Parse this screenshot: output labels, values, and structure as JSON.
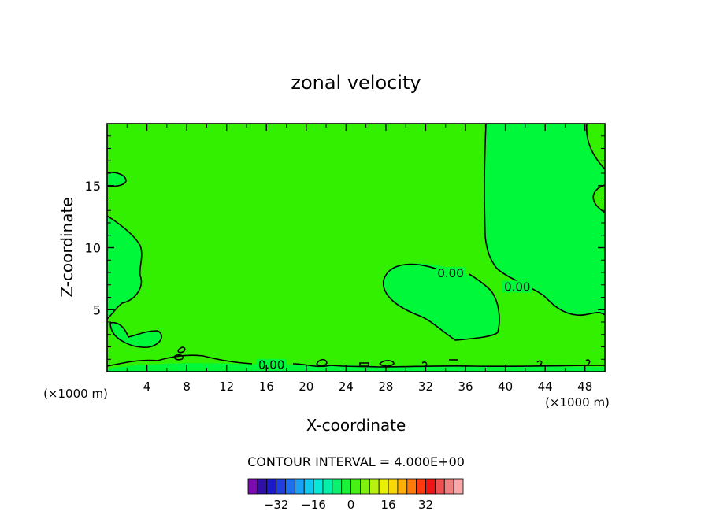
{
  "chart_data": {
    "type": "contour",
    "title": "zonal velocity",
    "xlabel": "X-coordinate",
    "ylabel": "Z-coordinate",
    "x_unit_left": "(×1000 m)",
    "x_unit_right": "(×1000 m)",
    "xlim": [
      0,
      50
    ],
    "ylim": [
      0,
      20
    ],
    "x_ticks": [
      4,
      8,
      12,
      16,
      20,
      24,
      28,
      32,
      36,
      40,
      44,
      48
    ],
    "y_ticks": [
      5,
      10,
      15
    ],
    "contour_interval_text": "CONTOUR INTERVAL = 4.000E+00",
    "contour_labels": [
      {
        "text": "0.00",
        "x": 34.5,
        "y": 7.8
      },
      {
        "text": "0.00",
        "x": 41.2,
        "y": 6.7
      },
      {
        "text": "0.00",
        "x": 16.5,
        "y": 0.4
      }
    ],
    "colorbar": {
      "ticks": [
        "-32",
        "-16",
        "0",
        "16",
        "32"
      ],
      "colors": [
        "#7b0ab0",
        "#2f0fa8",
        "#1a1acc",
        "#1f3fe0",
        "#1e6ff0",
        "#1aa0f5",
        "#10c8f0",
        "#08e8d8",
        "#08f0a8",
        "#0cf070",
        "#1cf038",
        "#48f018",
        "#80f010",
        "#b8f010",
        "#e8f008",
        "#f8d808",
        "#ffb008",
        "#ff7a08",
        "#ff3a10",
        "#f01414",
        "#f05050",
        "#f08080",
        "#f8a8a8"
      ]
    },
    "background_fill_color": "#33f000",
    "inner_fill_color": "#00f83a"
  }
}
